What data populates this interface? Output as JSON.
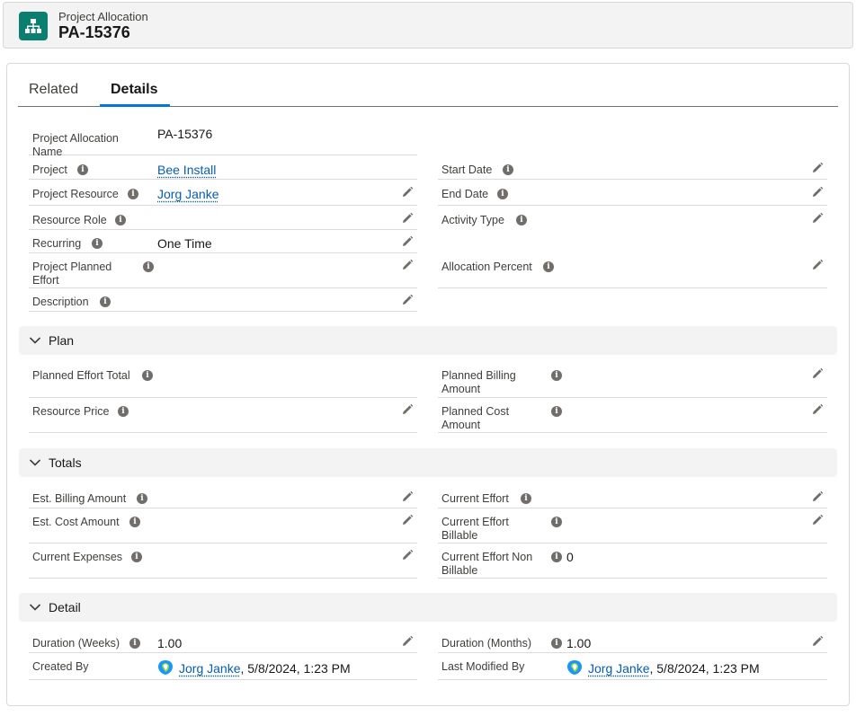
{
  "header": {
    "object_type": "Project Allocation",
    "record_name": "PA-15376"
  },
  "tabs": [
    {
      "label": "Related"
    },
    {
      "label": "Details"
    }
  ],
  "top_fields": {
    "allocation_name": {
      "label": "Project Allocation Name",
      "value": "PA-15376"
    },
    "project": {
      "label": "Project",
      "value": "Bee Install"
    },
    "project_resource": {
      "label": "Project Resource",
      "value": "Jorg Janke"
    },
    "resource_role": {
      "label": "Resource Role",
      "value": ""
    },
    "recurring": {
      "label": "Recurring",
      "value": "One Time"
    },
    "planned_effort": {
      "label": "Project Planned Effort",
      "value": ""
    },
    "description": {
      "label": "Description",
      "value": ""
    },
    "start_date": {
      "label": "Start Date",
      "value": ""
    },
    "end_date": {
      "label": "End Date",
      "value": ""
    },
    "activity_type": {
      "label": "Activity Type",
      "value": ""
    },
    "allocation_percent": {
      "label": "Allocation Percent",
      "value": ""
    }
  },
  "sections": {
    "plan": {
      "title": "Plan",
      "planned_effort_total": {
        "label": "Planned Effort Total",
        "value": ""
      },
      "resource_price": {
        "label": "Resource Price",
        "value": ""
      },
      "planned_billing_amount": {
        "label": "Planned Billing Amount",
        "value": ""
      },
      "planned_cost_amount": {
        "label": "Planned Cost Amount",
        "value": ""
      }
    },
    "totals": {
      "title": "Totals",
      "est_billing_amount": {
        "label": "Est. Billing Amount",
        "value": ""
      },
      "est_cost_amount": {
        "label": "Est. Cost Amount",
        "value": ""
      },
      "current_expenses": {
        "label": "Current Expenses",
        "value": ""
      },
      "current_effort": {
        "label": "Current Effort",
        "value": ""
      },
      "current_effort_billable": {
        "label": "Current Effort Billable",
        "value": ""
      },
      "current_effort_non_billable": {
        "label": "Current Effort Non Billable",
        "value": "0"
      }
    },
    "detail": {
      "title": "Detail",
      "duration_weeks": {
        "label": "Duration (Weeks)",
        "value": "1.00"
      },
      "duration_months": {
        "label": "Duration (Months)",
        "value": "1.00"
      },
      "created_by": {
        "label": "Created By",
        "name": "Jorg Janke",
        "date": ", 5/8/2024, 1:23 PM"
      },
      "last_modified_by": {
        "label": "Last Modified By",
        "name": "Jorg Janke",
        "date": ", 5/8/2024, 1:23 PM"
      }
    }
  },
  "icons": {
    "object_icon": "hierarchy-icon",
    "info": "info-icon",
    "edit": "pencil-icon",
    "collapse": "chevron-down-icon",
    "avatar": "user-avatar-icon"
  },
  "colors": {
    "brand": "#0176d3",
    "link": "#0b5cab",
    "object_icon_bg": "#0b7f6f"
  }
}
